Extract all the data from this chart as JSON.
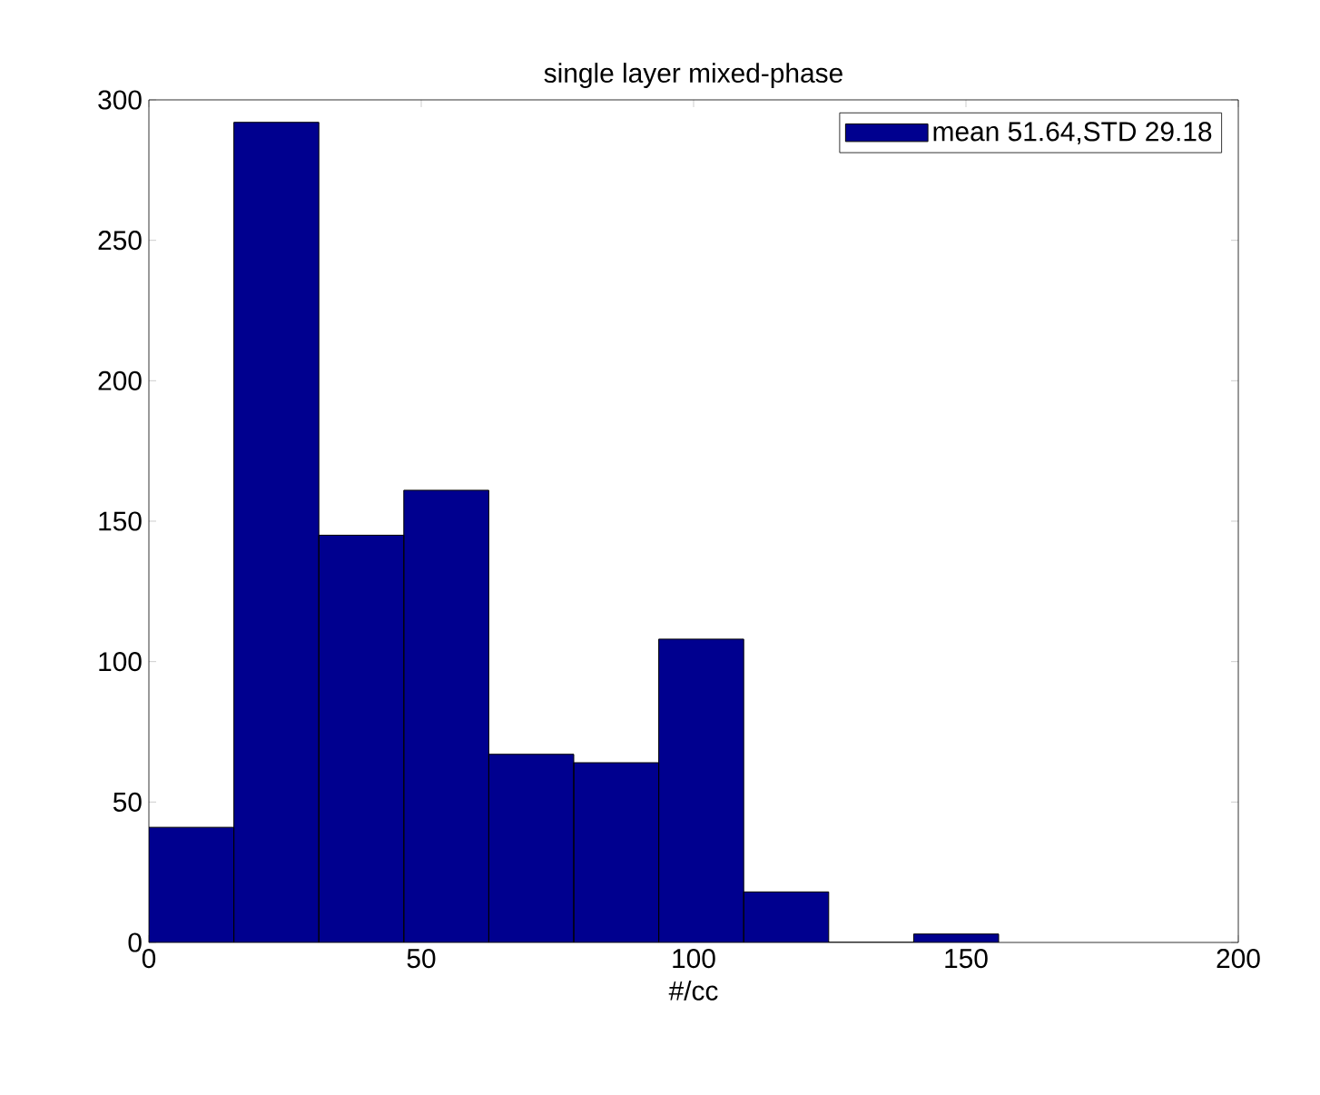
{
  "chart_data": {
    "type": "histogram",
    "title": "single layer mixed-phase",
    "xlabel": "#/cc",
    "bins": [
      0,
      15.6,
      31.2,
      46.8,
      62.4,
      78,
      93.6,
      109.2,
      124.8,
      140.4,
      156
    ],
    "series": [
      {
        "name": "mean 51.64,STD 29.18",
        "color": "#00008f",
        "values": [
          41,
          292,
          145,
          161,
          67,
          64,
          108,
          18,
          0,
          3
        ]
      }
    ],
    "xlim": [
      0,
      200
    ],
    "xticks": [
      0,
      50,
      100,
      150,
      200
    ],
    "ylim": [
      0,
      300
    ],
    "yticks": [
      0,
      50,
      100,
      150,
      200,
      250,
      300
    ],
    "legend": "top right",
    "grid": false
  }
}
